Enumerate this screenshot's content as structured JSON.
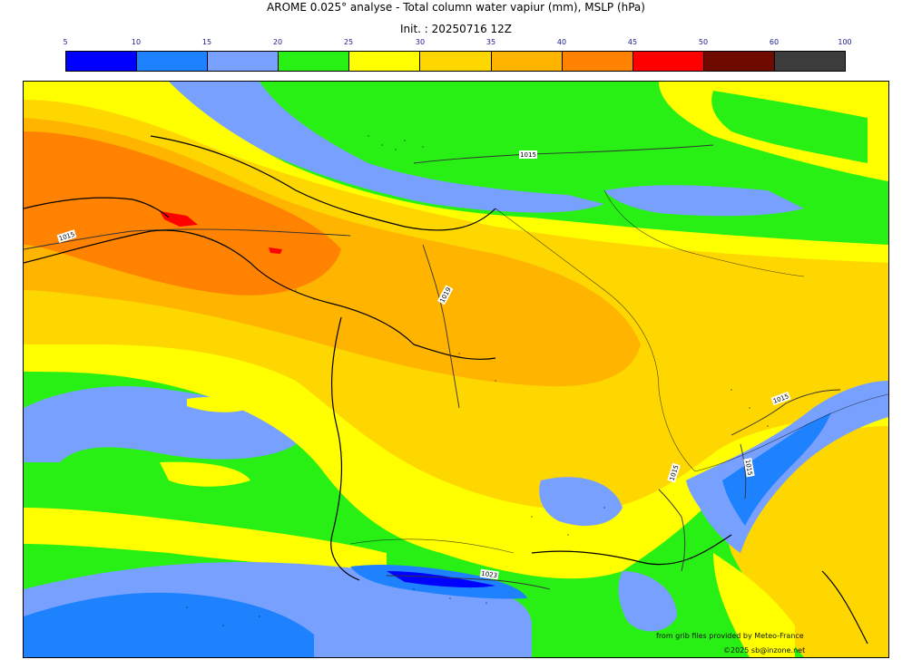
{
  "header": {
    "title": "AROME 0.025° analyse - Total column water vapiur (mm), MSLP (hPa)",
    "subtitle": "Init. : 20250716 12Z"
  },
  "colorbar": {
    "ticks": [
      "5",
      "10",
      "15",
      "20",
      "25",
      "30",
      "35",
      "40",
      "45",
      "50",
      "60",
      "100"
    ],
    "colors": [
      "#0000ff",
      "#1e82ff",
      "#78a0ff",
      "#28f014",
      "#ffff00",
      "#ffd700",
      "#ffb400",
      "#ff8200",
      "#ff0000",
      "#6e0a00",
      "#3c3c3c"
    ]
  },
  "map": {
    "isobar_labels": [
      "1015",
      "1015",
      "1019",
      "1015",
      "1015",
      "1015",
      "1023"
    ],
    "credits": [
      "from grib files provided by Meteo-France",
      "©2025 sb@inzone.net"
    ]
  }
}
